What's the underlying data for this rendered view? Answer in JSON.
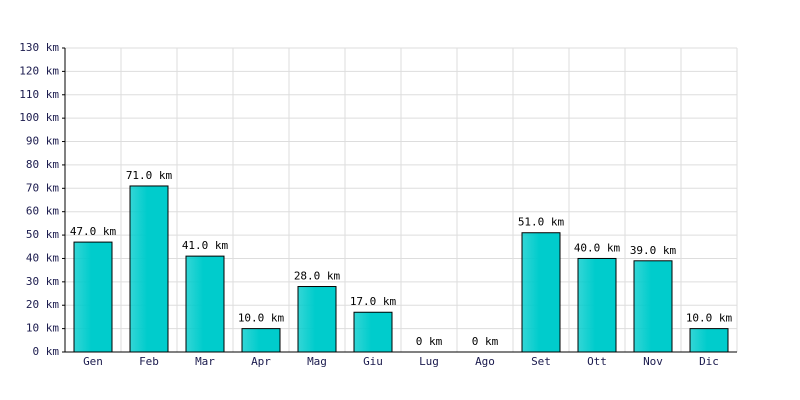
{
  "chart_data": {
    "type": "bar",
    "categories": [
      "Gen",
      "Feb",
      "Mar",
      "Apr",
      "Mag",
      "Giu",
      "Lug",
      "Ago",
      "Set",
      "Ott",
      "Nov",
      "Dic"
    ],
    "values": [
      47,
      71,
      41,
      10,
      28,
      17,
      0,
      0,
      51,
      40,
      39,
      10
    ],
    "value_labels": [
      "47.0 km",
      "71.0 km",
      "41.0 km",
      "10.0 km",
      "28.0 km",
      "17.0 km",
      "0 km",
      "0 km",
      "51.0 km",
      "40.0 km",
      "39.0 km",
      "10.0 km"
    ],
    "color": "#00cccc",
    "ylim": [
      0,
      130
    ],
    "yticks": [
      {
        "value": 0,
        "label": "0 km"
      },
      {
        "value": 10,
        "label": "10 km"
      },
      {
        "value": 20,
        "label": "20 km"
      },
      {
        "value": 30,
        "label": "30 km"
      },
      {
        "value": 40,
        "label": "40 km"
      },
      {
        "value": 50,
        "label": "50 km"
      },
      {
        "value": 60,
        "label": "60 km"
      },
      {
        "value": 70,
        "label": "70 km"
      },
      {
        "value": 80,
        "label": "80 km"
      },
      {
        "value": 90,
        "label": "90 km"
      },
      {
        "value": 100,
        "label": "100 km"
      },
      {
        "value": 110,
        "label": "110 km"
      },
      {
        "value": 120,
        "label": "120 km"
      },
      {
        "value": 130,
        "label": "130 km"
      }
    ],
    "grid": true
  }
}
